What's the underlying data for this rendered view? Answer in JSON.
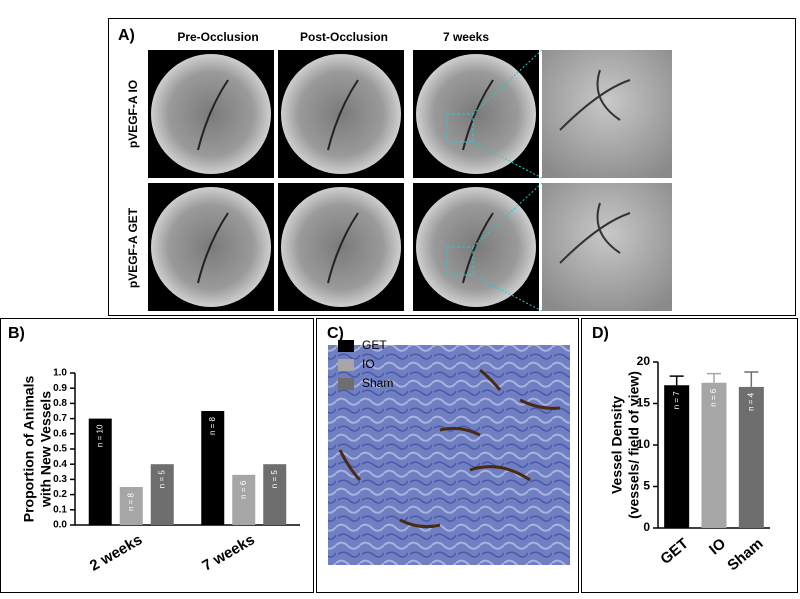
{
  "panel_a": {
    "label": "A)",
    "columns": [
      "Pre-Occlusion",
      "Post-Occlusion",
      "7 weeks"
    ],
    "rows": [
      "pVEGF-A IO",
      "pVEGF-A GET"
    ]
  },
  "panel_c": {
    "label": "C)"
  },
  "chart_data": [
    {
      "type": "bar",
      "panel_label": "B)",
      "ylabel": [
        "Proportion of Animals",
        "with New Vessels"
      ],
      "categories": [
        "2 weeks",
        "7 weeks"
      ],
      "series": [
        {
          "name": "GET",
          "color": "#000000",
          "values": [
            0.7,
            0.75
          ],
          "annotations": [
            "n = 10",
            "n = 8"
          ]
        },
        {
          "name": "IO",
          "color": "#a6a6a6",
          "values": [
            0.25,
            0.33
          ],
          "annotations": [
            "n = 8",
            "n = 6"
          ]
        },
        {
          "name": "Sham",
          "color": "#6e6e6e",
          "values": [
            0.4,
            0.4
          ],
          "annotations": [
            "n = 5",
            "n = 5"
          ]
        }
      ],
      "ylim": [
        0,
        1.0
      ],
      "yticks": [
        {
          "value": 0,
          "label": "0.0"
        },
        0.1,
        0.2,
        0.3,
        0.4,
        0.5,
        0.6,
        0.7,
        0.8,
        0.9,
        {
          "value": 1.0,
          "label": "1.0"
        }
      ],
      "legend": "top-right"
    },
    {
      "type": "bar",
      "panel_label": "D)",
      "ylabel": [
        "Vessel Density",
        "(vessels/ field of view)"
      ],
      "categories": [
        "GET",
        "IO",
        "Sham"
      ],
      "values": [
        17.2,
        17.5,
        17.0
      ],
      "errors": [
        1.1,
        1.1,
        1.8
      ],
      "colors": [
        "#000000",
        "#a6a6a6",
        "#6e6e6e"
      ],
      "annotations": [
        "n = 7",
        "n = 6",
        "n = 4"
      ],
      "ylim": [
        0,
        20
      ],
      "yticks": [
        0,
        5,
        10,
        15,
        20
      ]
    }
  ]
}
